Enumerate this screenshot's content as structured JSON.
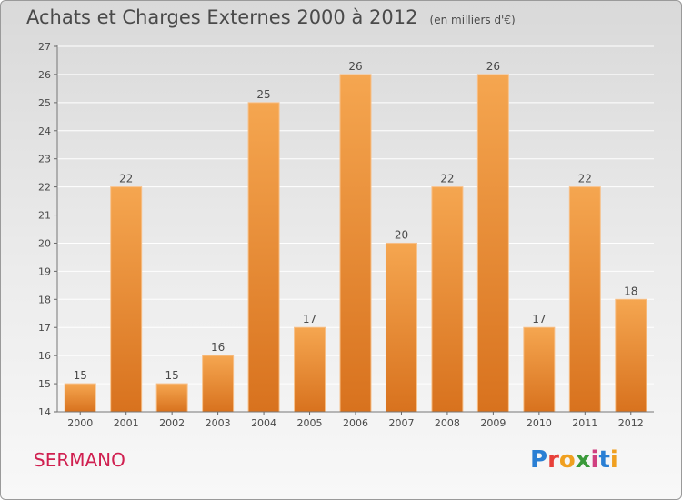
{
  "title": "Achats et Charges Externes 2000 à 2012",
  "subtitle": "(en milliers d'€)",
  "commune": "SERMANO",
  "logo": {
    "letters": [
      "P",
      "r",
      "o",
      "x",
      "i",
      "t",
      "i"
    ],
    "colors": [
      "#2a7fd4",
      "#e8403a",
      "#f0a020",
      "#3a9a3a",
      "#d04080",
      "#2a7fd4",
      "#f0a020"
    ]
  },
  "colors": {
    "bar_light": "#f5a650",
    "bar_dark": "#d8721e",
    "text": "#4a4a4a",
    "title_accent": "#d02050"
  },
  "chart_data": {
    "type": "bar",
    "categories": [
      "2000",
      "2001",
      "2002",
      "2003",
      "2004",
      "2005",
      "2006",
      "2007",
      "2008",
      "2009",
      "2010",
      "2011",
      "2012"
    ],
    "values": [
      15,
      22,
      15,
      16,
      25,
      17,
      26,
      20,
      22,
      26,
      17,
      22,
      18
    ],
    "ylim": [
      14,
      27
    ],
    "yticks": [
      14,
      15,
      16,
      17,
      18,
      19,
      20,
      21,
      22,
      23,
      24,
      25,
      26,
      27
    ],
    "grid": true,
    "legend": "none"
  }
}
